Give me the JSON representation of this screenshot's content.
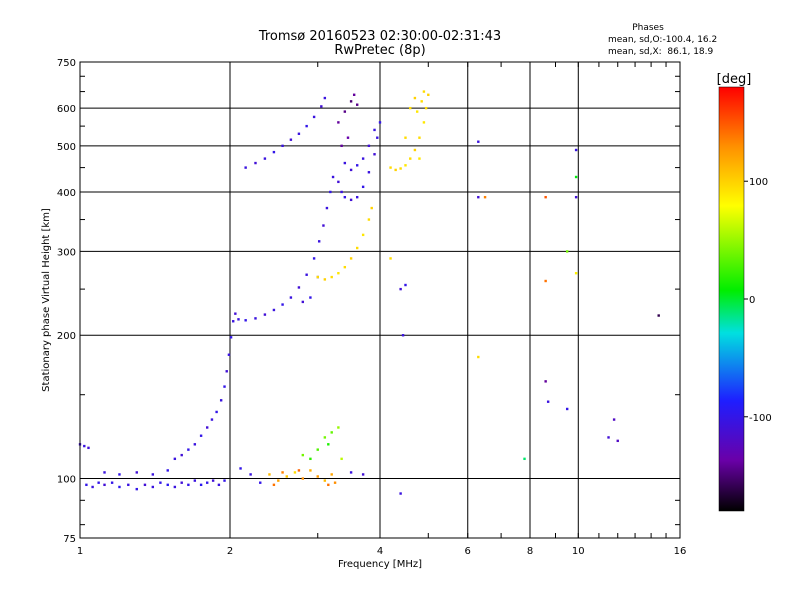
{
  "header": {
    "title_line1": "Tromsø 20160523 02:30:00-02:31:43",
    "title_line2": "RwPretec (8p)"
  },
  "stats": {
    "heading": "Phases",
    "line_o": "mean, sd,O:-100.4, 16.2",
    "line_x": "mean, sd,X:  86.1, 18.9"
  },
  "colorbar": {
    "label": "[deg]",
    "ticks": [
      {
        "value": 100,
        "label": "100"
      },
      {
        "value": 0,
        "label": "0"
      },
      {
        "value": -100,
        "label": "-100"
      }
    ],
    "range": [
      -180,
      180
    ]
  },
  "chart_data": {
    "type": "scatter",
    "title": "Tromsø 20160523 02:30:00-02:31:43",
    "subtitle": "RwPretec (8p)",
    "xlabel": "Frequency [MHz]",
    "ylabel": "Stationary phase Virtual Height [km]",
    "xscale": "log",
    "yscale": "log",
    "xlim": [
      1,
      16
    ],
    "ylim": [
      75,
      750
    ],
    "xticks": [
      {
        "value": 1,
        "label": "1"
      },
      {
        "value": 2,
        "label": "2"
      },
      {
        "value": 4,
        "label": "4"
      },
      {
        "value": 6,
        "label": "6"
      },
      {
        "value": 8,
        "label": "8"
      },
      {
        "value": 10,
        "label": "10"
      },
      {
        "value": 16,
        "label": "16"
      }
    ],
    "yticks": [
      {
        "value": 75,
        "label": "75"
      },
      {
        "value": 100,
        "label": "100"
      },
      {
        "value": 200,
        "label": "200"
      },
      {
        "value": 300,
        "label": "300"
      },
      {
        "value": 400,
        "label": "400"
      },
      {
        "value": 500,
        "label": "500"
      },
      {
        "value": 600,
        "label": "600"
      },
      {
        "value": 750,
        "label": "750"
      }
    ],
    "grid": true,
    "color_by": "phase [deg]",
    "series": [
      {
        "points": [
          [
            1.0,
            118,
            -110
          ],
          [
            1.02,
            117,
            -105
          ],
          [
            1.04,
            116,
            -110
          ],
          [
            1.03,
            97,
            -100
          ],
          [
            1.06,
            96,
            -105
          ],
          [
            1.09,
            98,
            -100
          ],
          [
            1.12,
            97,
            -110
          ],
          [
            1.16,
            98,
            -100
          ],
          [
            1.2,
            96,
            -95
          ],
          [
            1.25,
            97,
            -105
          ],
          [
            1.3,
            95,
            -100
          ],
          [
            1.35,
            97,
            -110
          ],
          [
            1.4,
            96,
            -105
          ],
          [
            1.45,
            98,
            -100
          ],
          [
            1.5,
            97,
            -95
          ],
          [
            1.55,
            96,
            -105
          ],
          [
            1.6,
            98,
            -110
          ],
          [
            1.65,
            97,
            -100
          ],
          [
            1.7,
            99,
            -105
          ],
          [
            1.75,
            97,
            -95
          ],
          [
            1.8,
            98,
            -100
          ],
          [
            1.85,
            99,
            -110
          ],
          [
            1.9,
            97,
            -105
          ],
          [
            1.95,
            99,
            -100
          ],
          [
            1.12,
            103,
            -105
          ],
          [
            1.2,
            102,
            -100
          ],
          [
            1.3,
            103,
            -110
          ],
          [
            1.4,
            102,
            -105
          ],
          [
            1.5,
            104,
            -100
          ],
          [
            1.55,
            110,
            -105
          ],
          [
            1.6,
            112,
            -110
          ],
          [
            1.65,
            115,
            -100
          ],
          [
            1.7,
            118,
            -105
          ],
          [
            1.75,
            123,
            -100
          ],
          [
            1.8,
            128,
            -110
          ],
          [
            1.84,
            133,
            -105
          ],
          [
            1.88,
            138,
            -100
          ],
          [
            1.92,
            146,
            -105
          ],
          [
            1.95,
            156,
            -100
          ],
          [
            1.97,
            168,
            -110
          ],
          [
            1.99,
            182,
            -105
          ],
          [
            2.01,
            198,
            -100
          ],
          [
            2.03,
            214,
            -105
          ],
          [
            2.05,
            222,
            -110
          ],
          [
            2.08,
            216,
            -105
          ],
          [
            2.15,
            215,
            -100
          ],
          [
            2.25,
            217,
            -105
          ],
          [
            2.35,
            221,
            -110
          ],
          [
            2.45,
            226,
            -105
          ],
          [
            2.55,
            232,
            -100
          ],
          [
            2.65,
            240,
            -105
          ],
          [
            2.75,
            252,
            -110
          ],
          [
            2.85,
            268,
            -105
          ],
          [
            2.95,
            290,
            -100
          ],
          [
            3.02,
            315,
            -105
          ],
          [
            3.08,
            340,
            -110
          ],
          [
            3.13,
            370,
            -105
          ],
          [
            3.18,
            400,
            -100
          ],
          [
            3.22,
            430,
            -105
          ],
          [
            2.9,
            240,
            -100
          ],
          [
            2.8,
            235,
            -110
          ],
          [
            3.0,
            265,
            -105
          ],
          [
            2.15,
            450,
            -105
          ],
          [
            2.25,
            460,
            -110
          ],
          [
            2.35,
            470,
            -105
          ],
          [
            2.45,
            485,
            -100
          ],
          [
            2.55,
            500,
            -105
          ],
          [
            2.65,
            515,
            -110
          ],
          [
            2.75,
            530,
            -105
          ],
          [
            2.85,
            550,
            -100
          ],
          [
            2.95,
            575,
            -105
          ],
          [
            3.05,
            605,
            -110
          ],
          [
            3.1,
            630,
            -105
          ],
          [
            3.3,
            420,
            -110
          ],
          [
            3.35,
            400,
            -105
          ],
          [
            3.4,
            390,
            -100
          ],
          [
            3.5,
            385,
            -110
          ],
          [
            3.6,
            390,
            -105
          ],
          [
            3.7,
            410,
            -100
          ],
          [
            3.8,
            440,
            -105
          ],
          [
            3.9,
            480,
            -110
          ],
          [
            3.95,
            520,
            -105
          ],
          [
            4.0,
            560,
            -100
          ],
          [
            3.4,
            460,
            -105
          ],
          [
            3.5,
            445,
            -110
          ],
          [
            3.6,
            455,
            -100
          ],
          [
            3.7,
            470,
            -105
          ],
          [
            3.8,
            500,
            -110
          ],
          [
            3.9,
            540,
            -105
          ],
          [
            3.3,
            560,
            -140
          ],
          [
            3.4,
            590,
            -145
          ],
          [
            3.5,
            620,
            -150
          ],
          [
            3.55,
            640,
            -140
          ],
          [
            3.6,
            610,
            -145
          ],
          [
            3.35,
            500,
            -140
          ],
          [
            3.45,
            520,
            -135
          ],
          [
            2.1,
            105,
            -100
          ],
          [
            2.2,
            102,
            -105
          ],
          [
            2.3,
            98,
            -100
          ],
          [
            3.5,
            103,
            -105
          ],
          [
            3.7,
            102,
            -110
          ],
          [
            4.4,
            93,
            -105
          ],
          [
            4.5,
            255,
            -100
          ],
          [
            4.4,
            250,
            -110
          ],
          [
            4.45,
            200,
            -105
          ],
          [
            6.3,
            510,
            -105
          ],
          [
            6.3,
            390,
            -110
          ],
          [
            8.6,
            160,
            -140
          ],
          [
            8.7,
            145,
            -105
          ],
          [
            9.5,
            140,
            -100
          ],
          [
            9.9,
            490,
            -105
          ],
          [
            9.9,
            390,
            -110
          ],
          [
            11.8,
            133,
            -120
          ],
          [
            11.5,
            122,
            -110
          ],
          [
            12.0,
            120,
            -120
          ],
          [
            14.5,
            220,
            -160
          ]
        ]
      },
      {
        "points": [
          [
            3.0,
            265,
            95
          ],
          [
            3.1,
            262,
            100
          ],
          [
            3.2,
            265,
            95
          ],
          [
            3.3,
            270,
            90
          ],
          [
            3.4,
            278,
            95
          ],
          [
            3.5,
            290,
            100
          ],
          [
            3.6,
            305,
            95
          ],
          [
            3.7,
            325,
            90
          ],
          [
            3.8,
            350,
            95
          ],
          [
            3.85,
            370,
            100
          ],
          [
            4.2,
            450,
            95
          ],
          [
            4.3,
            445,
            100
          ],
          [
            4.4,
            448,
            95
          ],
          [
            4.5,
            455,
            90
          ],
          [
            4.6,
            470,
            95
          ],
          [
            4.7,
            490,
            100
          ],
          [
            4.8,
            520,
            95
          ],
          [
            4.9,
            560,
            90
          ],
          [
            4.95,
            600,
            95
          ],
          [
            5.0,
            640,
            100
          ],
          [
            4.85,
            620,
            95
          ],
          [
            4.75,
            590,
            90
          ],
          [
            4.6,
            600,
            95
          ],
          [
            4.7,
            630,
            100
          ],
          [
            4.9,
            650,
            95
          ],
          [
            4.8,
            470,
            90
          ],
          [
            4.5,
            520,
            95
          ],
          [
            2.4,
            102,
            110
          ],
          [
            2.5,
            99,
            120
          ],
          [
            2.6,
            101,
            105
          ],
          [
            2.7,
            103,
            95
          ],
          [
            2.8,
            100,
            130
          ],
          [
            2.9,
            104,
            115
          ],
          [
            3.0,
            101,
            125
          ],
          [
            3.1,
            99,
            110
          ],
          [
            3.2,
            102,
            120
          ],
          [
            3.25,
            98,
            130
          ],
          [
            2.45,
            97,
            140
          ],
          [
            2.55,
            103,
            135
          ],
          [
            3.15,
            97,
            140
          ],
          [
            2.9,
            110,
            20
          ],
          [
            3.0,
            115,
            30
          ],
          [
            3.1,
            122,
            40
          ],
          [
            3.15,
            118,
            15
          ],
          [
            3.2,
            125,
            35
          ],
          [
            3.3,
            128,
            50
          ],
          [
            3.35,
            110,
            60
          ],
          [
            2.8,
            112,
            40
          ],
          [
            2.75,
            104,
            145
          ],
          [
            4.2,
            290,
            95
          ],
          [
            6.5,
            390,
            135
          ],
          [
            6.3,
            180,
            95
          ],
          [
            8.6,
            260,
            140
          ],
          [
            8.6,
            390,
            150
          ],
          [
            9.9,
            270,
            85
          ],
          [
            9.9,
            430,
            5
          ],
          [
            7.8,
            110,
            -10
          ],
          [
            9.5,
            300,
            40
          ]
        ]
      }
    ]
  }
}
